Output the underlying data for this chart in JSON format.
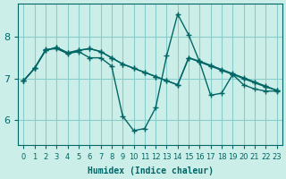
{
  "xlabel": "Humidex (Indice chaleur)",
  "bg_color": "#cceee8",
  "grid_color": "#88cccc",
  "line_color": "#006666",
  "xlim": [
    -0.5,
    23.5
  ],
  "ylim": [
    5.4,
    8.8
  ],
  "yticks": [
    6,
    7,
    8
  ],
  "xticks": [
    0,
    1,
    2,
    3,
    4,
    5,
    6,
    7,
    8,
    9,
    10,
    11,
    12,
    13,
    14,
    15,
    16,
    17,
    18,
    19,
    20,
    21,
    22,
    23
  ],
  "line1": [
    6.95,
    7.25,
    7.7,
    7.72,
    7.6,
    7.65,
    7.5,
    7.5,
    7.3,
    6.1,
    5.75,
    5.8,
    6.3,
    7.55,
    8.55,
    8.05,
    7.4,
    6.6,
    6.65,
    7.1,
    6.85,
    6.75,
    6.7,
    6.7
  ],
  "line2": [
    6.95,
    7.25,
    7.68,
    7.75,
    7.62,
    7.68,
    7.72,
    7.65,
    7.5,
    7.35,
    7.25,
    7.15,
    7.05,
    6.95,
    6.85,
    7.5,
    7.4,
    7.3,
    7.2,
    7.1,
    7.0,
    6.9,
    6.8,
    6.72
  ],
  "line3": [
    6.95,
    7.25,
    7.68,
    7.75,
    7.62,
    7.68,
    7.72,
    7.65,
    7.5,
    7.35,
    7.25,
    7.15,
    7.05,
    6.95,
    6.85,
    7.5,
    7.42,
    7.32,
    7.22,
    7.12,
    7.02,
    6.92,
    6.82,
    6.72
  ]
}
